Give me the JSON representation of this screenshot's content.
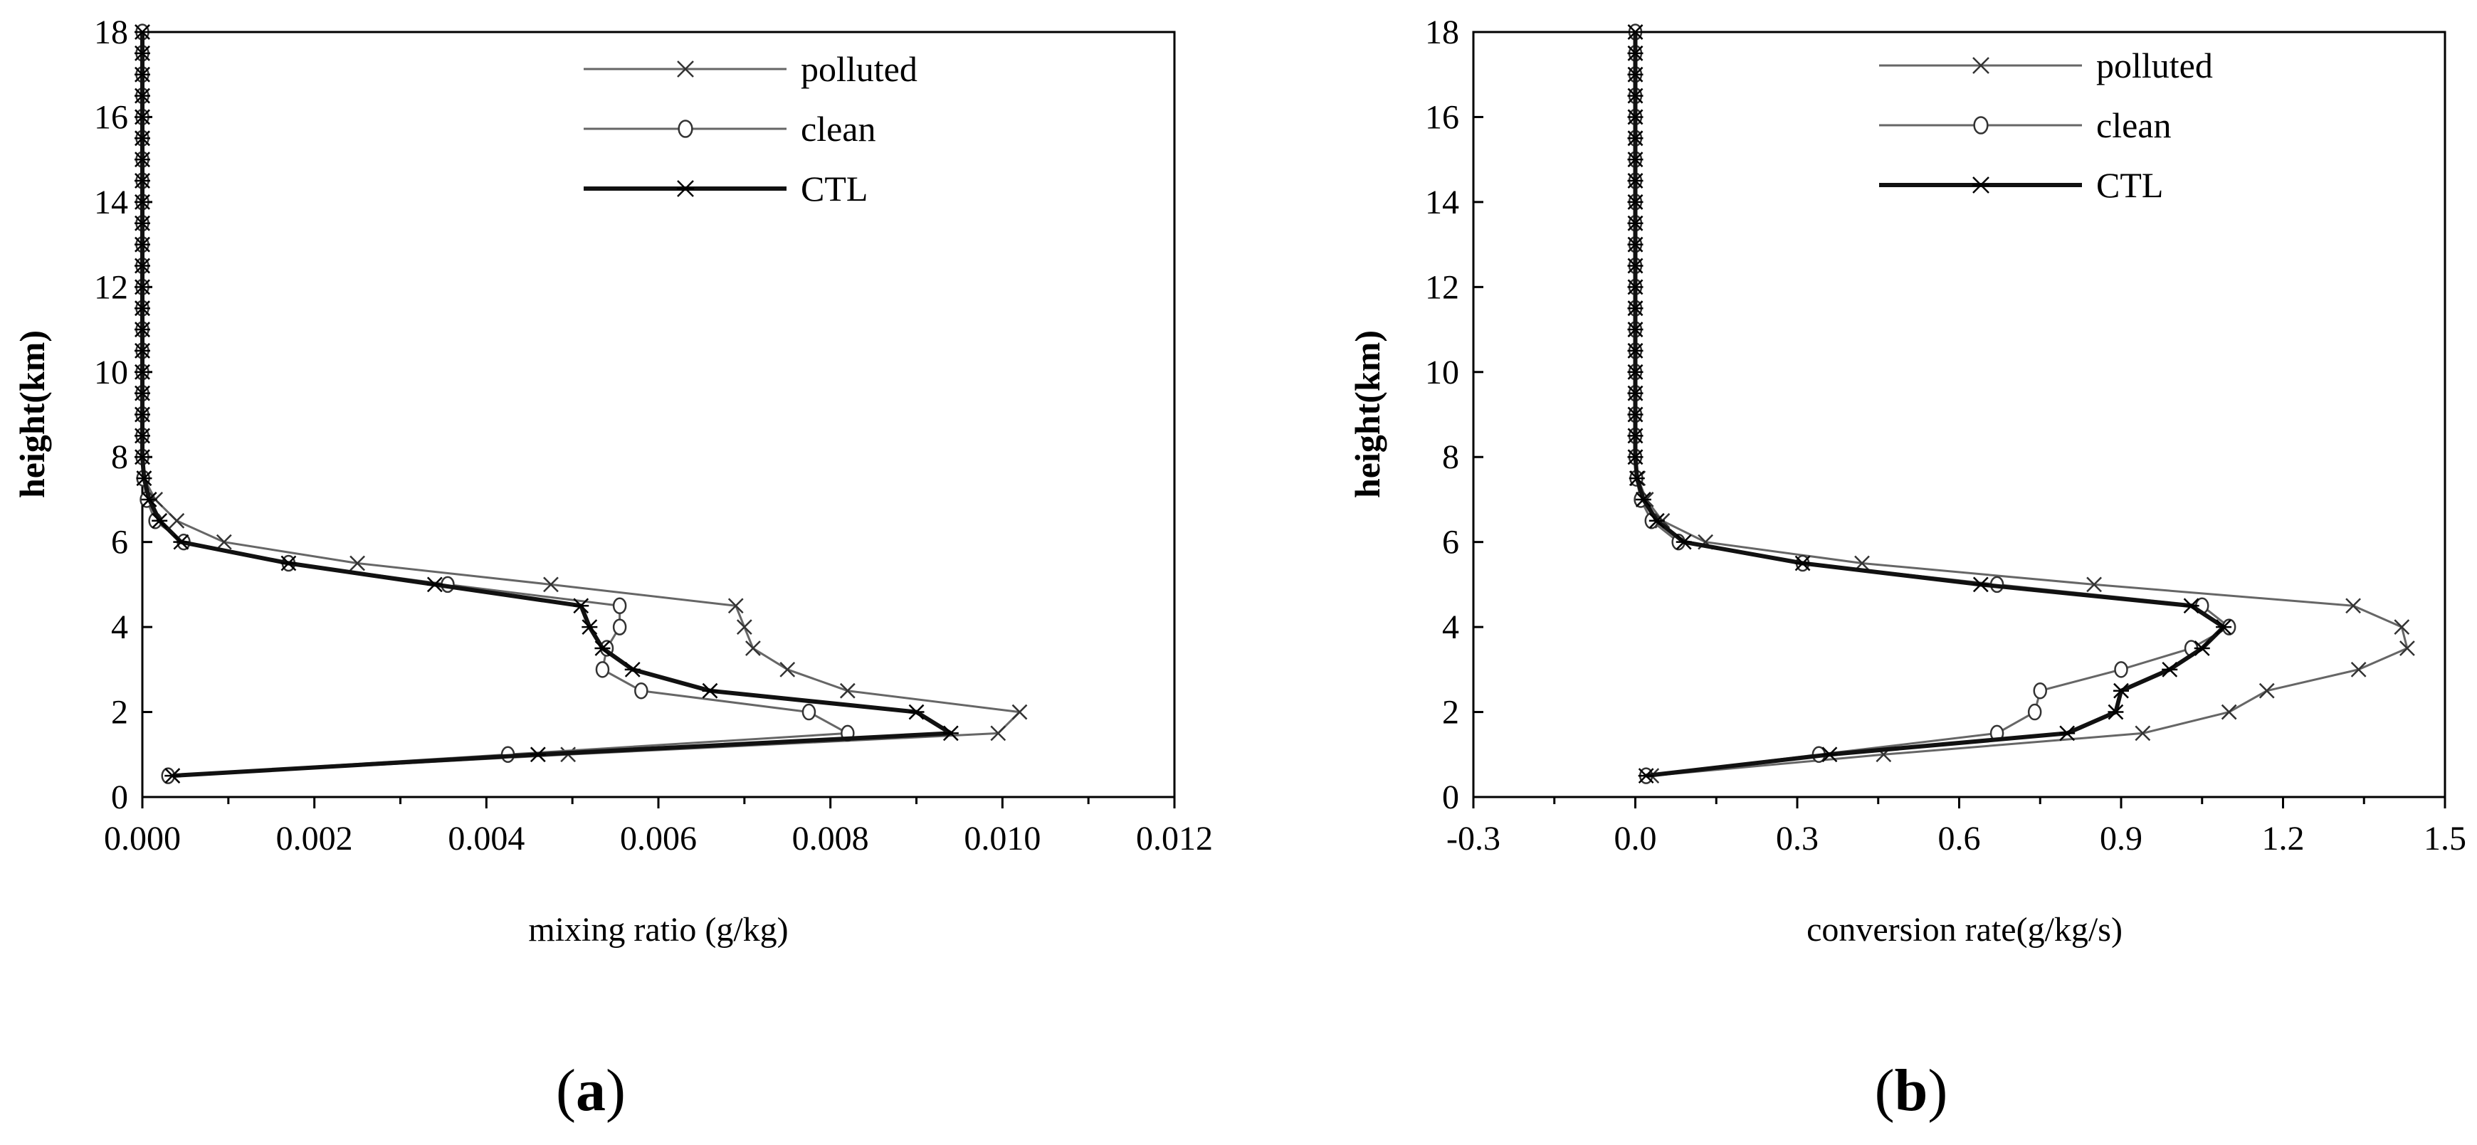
{
  "chart_data": [
    {
      "type": "line",
      "panel": "(a)",
      "panel_letter": "a",
      "xlabel": "mixing ratio (g/kg)",
      "ylabel": "height(km)",
      "xlim": [
        0.0,
        0.012
      ],
      "ylim": [
        0,
        18
      ],
      "x_ticks": [
        "0.000",
        "0.002",
        "0.004",
        "0.006",
        "0.008",
        "0.010",
        "0.012"
      ],
      "y_ticks": [
        "0",
        "2",
        "4",
        "6",
        "8",
        "10",
        "12",
        "14",
        "16",
        "18"
      ],
      "legend": [
        "polluted",
        "clean",
        "CTL"
      ],
      "series": [
        {
          "name": "polluted",
          "marker": "x",
          "points": [
            [
              0.00035,
              0.5
            ],
            [
              0.00495,
              1.0
            ],
            [
              0.00995,
              1.5
            ],
            [
              0.0102,
              2.0
            ],
            [
              0.0082,
              2.5
            ],
            [
              0.0075,
              3.0
            ],
            [
              0.0071,
              3.5
            ],
            [
              0.007,
              4.0
            ],
            [
              0.0069,
              4.5
            ],
            [
              0.00475,
              5.0
            ],
            [
              0.0025,
              5.5
            ],
            [
              0.00095,
              6.0
            ],
            [
              0.0004,
              6.5
            ],
            [
              0.00015,
              7.0
            ],
            [
              2e-05,
              7.5
            ],
            [
              0.0,
              8.0
            ],
            [
              0.0,
              8.5
            ],
            [
              0.0,
              9.0
            ],
            [
              0.0,
              9.5
            ],
            [
              0.0,
              10.0
            ],
            [
              0.0,
              10.5
            ],
            [
              0.0,
              11.0
            ],
            [
              0.0,
              11.5
            ],
            [
              0.0,
              12.0
            ],
            [
              0.0,
              12.5
            ],
            [
              0.0,
              13.0
            ],
            [
              0.0,
              13.5
            ],
            [
              0.0,
              14.0
            ],
            [
              0.0,
              14.5
            ],
            [
              0.0,
              15.0
            ],
            [
              0.0,
              15.5
            ],
            [
              0.0,
              16.0
            ],
            [
              0.0,
              16.5
            ],
            [
              0.0,
              17.0
            ],
            [
              0.0,
              17.5
            ],
            [
              0.0,
              18.0
            ]
          ]
        },
        {
          "name": "clean",
          "marker": "o",
          "points": [
            [
              0.0003,
              0.5
            ],
            [
              0.00425,
              1.0
            ],
            [
              0.0082,
              1.5
            ],
            [
              0.00775,
              2.0
            ],
            [
              0.0058,
              2.5
            ],
            [
              0.00535,
              3.0
            ],
            [
              0.0054,
              3.5
            ],
            [
              0.00555,
              4.0
            ],
            [
              0.00555,
              4.5
            ],
            [
              0.00355,
              5.0
            ],
            [
              0.0017,
              5.5
            ],
            [
              0.00048,
              6.0
            ],
            [
              0.00015,
              6.5
            ],
            [
              5e-05,
              7.0
            ],
            [
              1e-05,
              7.5
            ],
            [
              0.0,
              8.0
            ],
            [
              0.0,
              8.5
            ],
            [
              0.0,
              9.0
            ],
            [
              0.0,
              9.5
            ],
            [
              0.0,
              10.0
            ],
            [
              0.0,
              10.5
            ],
            [
              0.0,
              11.0
            ],
            [
              0.0,
              11.5
            ],
            [
              0.0,
              12.0
            ],
            [
              0.0,
              12.5
            ],
            [
              0.0,
              13.0
            ],
            [
              0.0,
              13.5
            ],
            [
              0.0,
              14.0
            ],
            [
              0.0,
              14.5
            ],
            [
              0.0,
              15.0
            ],
            [
              0.0,
              15.5
            ],
            [
              0.0,
              16.0
            ],
            [
              0.0,
              16.5
            ],
            [
              0.0,
              17.0
            ],
            [
              0.0,
              17.5
            ],
            [
              0.0,
              18.0
            ]
          ]
        },
        {
          "name": "CTL",
          "marker": "*",
          "points": [
            [
              0.00035,
              0.5
            ],
            [
              0.0046,
              1.0
            ],
            [
              0.0094,
              1.5
            ],
            [
              0.009,
              2.0
            ],
            [
              0.0066,
              2.5
            ],
            [
              0.0057,
              3.0
            ],
            [
              0.00535,
              3.5
            ],
            [
              0.0052,
              4.0
            ],
            [
              0.0051,
              4.5
            ],
            [
              0.0034,
              5.0
            ],
            [
              0.0017,
              5.5
            ],
            [
              0.00045,
              6.0
            ],
            [
              0.0002,
              6.5
            ],
            [
              8e-05,
              7.0
            ],
            [
              2e-05,
              7.5
            ],
            [
              0.0,
              8.0
            ],
            [
              0.0,
              8.5
            ],
            [
              0.0,
              9.0
            ],
            [
              0.0,
              9.5
            ],
            [
              0.0,
              10.0
            ],
            [
              0.0,
              10.5
            ],
            [
              0.0,
              11.0
            ],
            [
              0.0,
              11.5
            ],
            [
              0.0,
              12.0
            ],
            [
              0.0,
              12.5
            ],
            [
              0.0,
              13.0
            ],
            [
              0.0,
              13.5
            ],
            [
              0.0,
              14.0
            ],
            [
              0.0,
              14.5
            ],
            [
              0.0,
              15.0
            ],
            [
              0.0,
              15.5
            ],
            [
              0.0,
              16.0
            ],
            [
              0.0,
              16.5
            ],
            [
              0.0,
              17.0
            ],
            [
              0.0,
              17.5
            ],
            [
              0.0,
              18.0
            ]
          ]
        }
      ]
    },
    {
      "type": "line",
      "panel": "(b)",
      "panel_letter": "b",
      "xlabel": "conversion rate(g/kg/s)",
      "ylabel": "height(km)",
      "xlim": [
        -0.3,
        1.5
      ],
      "ylim": [
        0,
        18
      ],
      "x_ticks": [
        "-0.3",
        "0.0",
        "0.3",
        "0.6",
        "0.9",
        "1.2",
        "1.5"
      ],
      "y_ticks": [
        "0",
        "2",
        "4",
        "6",
        "8",
        "10",
        "12",
        "14",
        "16",
        "18"
      ],
      "legend": [
        "polluted",
        "clean",
        "CTL"
      ],
      "series": [
        {
          "name": "polluted",
          "marker": "x",
          "points": [
            [
              0.03,
              0.5
            ],
            [
              0.46,
              1.0
            ],
            [
              0.94,
              1.5
            ],
            [
              1.1,
              2.0
            ],
            [
              1.17,
              2.5
            ],
            [
              1.34,
              3.0
            ],
            [
              1.43,
              3.5
            ],
            [
              1.42,
              4.0
            ],
            [
              1.33,
              4.5
            ],
            [
              0.85,
              5.0
            ],
            [
              0.42,
              5.5
            ],
            [
              0.13,
              6.0
            ],
            [
              0.05,
              6.5
            ],
            [
              0.02,
              7.0
            ],
            [
              0.005,
              7.5
            ],
            [
              0.0,
              8.0
            ],
            [
              0.0,
              8.5
            ],
            [
              0.0,
              9.0
            ],
            [
              0.0,
              9.5
            ],
            [
              0.0,
              10.0
            ],
            [
              0.0,
              10.5
            ],
            [
              0.0,
              11.0
            ],
            [
              0.0,
              11.5
            ],
            [
              0.0,
              12.0
            ],
            [
              0.0,
              12.5
            ],
            [
              0.0,
              13.0
            ],
            [
              0.0,
              13.5
            ],
            [
              0.0,
              14.0
            ],
            [
              0.0,
              14.5
            ],
            [
              0.0,
              15.0
            ],
            [
              0.0,
              15.5
            ],
            [
              0.0,
              16.0
            ],
            [
              0.0,
              16.5
            ],
            [
              0.0,
              17.0
            ],
            [
              0.0,
              17.5
            ],
            [
              0.0,
              18.0
            ]
          ]
        },
        {
          "name": "clean",
          "marker": "o",
          "points": [
            [
              0.02,
              0.5
            ],
            [
              0.34,
              1.0
            ],
            [
              0.67,
              1.5
            ],
            [
              0.74,
              2.0
            ],
            [
              0.75,
              2.5
            ],
            [
              0.9,
              3.0
            ],
            [
              1.03,
              3.5
            ],
            [
              1.1,
              4.0
            ],
            [
              1.05,
              4.5
            ],
            [
              0.67,
              5.0
            ],
            [
              0.31,
              5.5
            ],
            [
              0.08,
              6.0
            ],
            [
              0.03,
              6.5
            ],
            [
              0.01,
              7.0
            ],
            [
              0.002,
              7.5
            ],
            [
              0.0,
              8.0
            ],
            [
              0.0,
              8.5
            ],
            [
              0.0,
              9.0
            ],
            [
              0.0,
              9.5
            ],
            [
              0.0,
              10.0
            ],
            [
              0.0,
              10.5
            ],
            [
              0.0,
              11.0
            ],
            [
              0.0,
              11.5
            ],
            [
              0.0,
              12.0
            ],
            [
              0.0,
              12.5
            ],
            [
              0.0,
              13.0
            ],
            [
              0.0,
              13.5
            ],
            [
              0.0,
              14.0
            ],
            [
              0.0,
              14.5
            ],
            [
              0.0,
              15.0
            ],
            [
              0.0,
              15.5
            ],
            [
              0.0,
              16.0
            ],
            [
              0.0,
              16.5
            ],
            [
              0.0,
              17.0
            ],
            [
              0.0,
              17.5
            ],
            [
              0.0,
              18.0
            ]
          ]
        },
        {
          "name": "CTL",
          "marker": "*",
          "points": [
            [
              0.02,
              0.5
            ],
            [
              0.36,
              1.0
            ],
            [
              0.8,
              1.5
            ],
            [
              0.89,
              2.0
            ],
            [
              0.9,
              2.5
            ],
            [
              0.99,
              3.0
            ],
            [
              1.05,
              3.5
            ],
            [
              1.09,
              4.0
            ],
            [
              1.03,
              4.5
            ],
            [
              0.64,
              5.0
            ],
            [
              0.31,
              5.5
            ],
            [
              0.09,
              6.0
            ],
            [
              0.04,
              6.5
            ],
            [
              0.015,
              7.0
            ],
            [
              0.003,
              7.5
            ],
            [
              0.0,
              8.0
            ],
            [
              0.0,
              8.5
            ],
            [
              0.0,
              9.0
            ],
            [
              0.0,
              9.5
            ],
            [
              0.0,
              10.0
            ],
            [
              0.0,
              10.5
            ],
            [
              0.0,
              11.0
            ],
            [
              0.0,
              11.5
            ],
            [
              0.0,
              12.0
            ],
            [
              0.0,
              12.5
            ],
            [
              0.0,
              13.0
            ],
            [
              0.0,
              13.5
            ],
            [
              0.0,
              14.0
            ],
            [
              0.0,
              14.5
            ],
            [
              0.0,
              15.0
            ],
            [
              0.0,
              15.5
            ],
            [
              0.0,
              16.0
            ],
            [
              0.0,
              16.5
            ],
            [
              0.0,
              17.0
            ],
            [
              0.0,
              17.5
            ],
            [
              0.0,
              18.0
            ]
          ]
        }
      ]
    }
  ]
}
